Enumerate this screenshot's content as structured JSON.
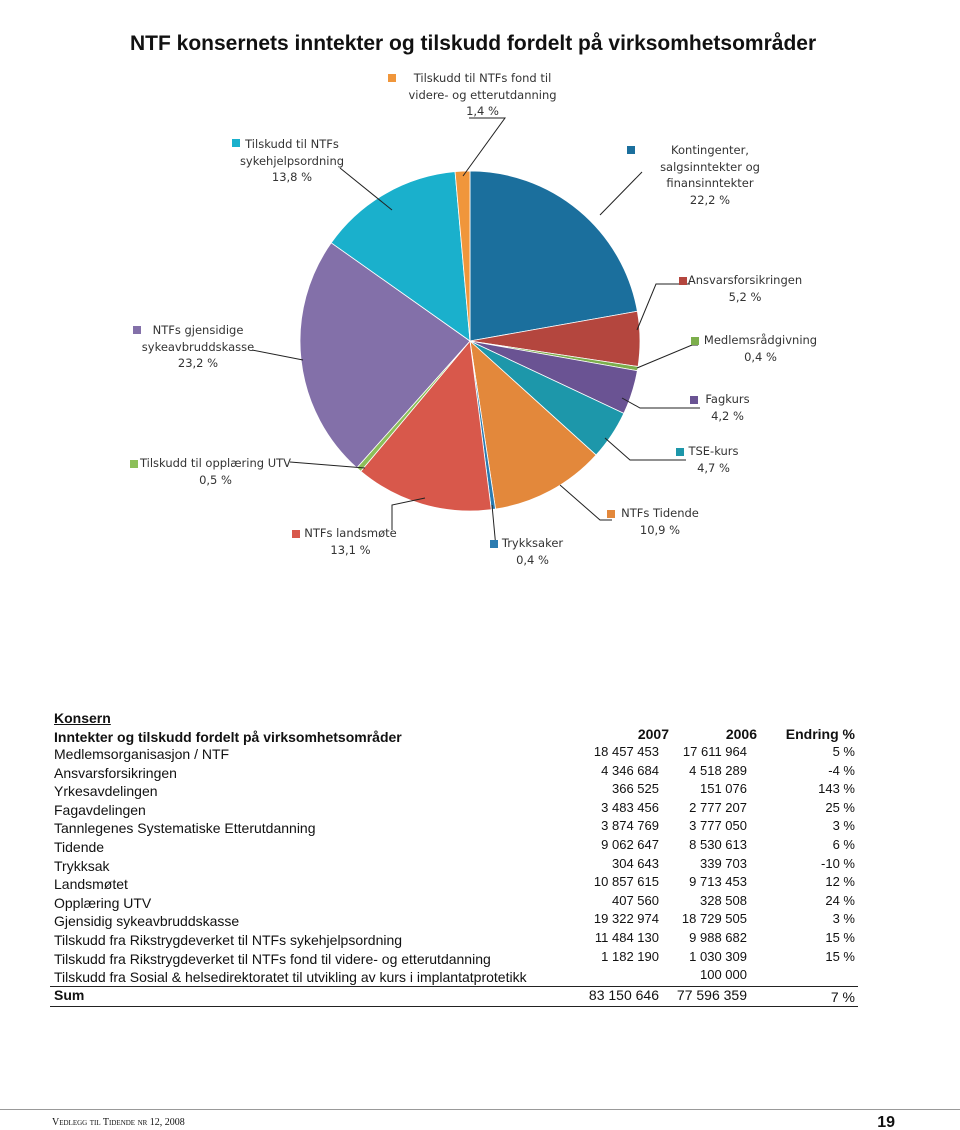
{
  "chart_data": {
    "type": "pie",
    "title": "NTF konsernets inntekter og tilskudd fordelt på virksomhetsområder",
    "categories": [
      "Kontingenter, salgsinntekter og finansinntekter",
      "Ansvarsforsikringen",
      "Medlemsrådgivning",
      "Fagkurs",
      "TSE-kurs",
      "NTFs Tidende",
      "Trykksaker",
      "NTFs landsmøte",
      "Tilskudd til opplæring UTV",
      "NTFs gjensidige sykeavbruddskasse",
      "Tilskudd til NTFs sykehjelpsordning",
      "Tilskudd til NTFs fond til videre- og etterutdanning"
    ],
    "values": [
      22.2,
      5.2,
      0.4,
      4.2,
      4.7,
      10.9,
      0.4,
      13.1,
      0.5,
      23.2,
      13.8,
      1.4
    ],
    "value_labels": [
      "22,2 %",
      "5,2 %",
      "0,4 %",
      "4,2 %",
      "4,7 %",
      "10,9 %",
      "0,4 %",
      "13,1 %",
      "0,5 %",
      "23,2 %",
      "13,8 %",
      "1,4 %"
    ],
    "colors": [
      "#1b6f9d",
      "#b4463e",
      "#7cae4c",
      "#6a5393",
      "#1d97aa",
      "#e3883b",
      "#2b7bb0",
      "#d8584b",
      "#8cbf59",
      "#8370a9",
      "#1ab0cc",
      "#f0963b"
    ]
  },
  "table": {
    "heading": "Konsern",
    "subheading": "Inntekter og tilskudd fordelt på virksomhetsområder",
    "columns": [
      "2007",
      "2006",
      "Endring %"
    ],
    "rows": [
      [
        "Medlemsorganisasjon / NTF",
        "18 457 453",
        "17 611 964",
        "5 %"
      ],
      [
        "Ansvarsforsikringen",
        "4 346 684",
        "4 518 289",
        "-4 %"
      ],
      [
        "Yrkesavdelingen",
        "366 525",
        "151 076",
        "143 %"
      ],
      [
        "Fagavdelingen",
        "3 483 456",
        "2 777 207",
        "25 %"
      ],
      [
        "Tannlegenes Systematiske Etterutdanning",
        "3 874 769",
        "3 777 050",
        "3 %"
      ],
      [
        "Tidende",
        "9 062 647",
        "8 530 613",
        "6 %"
      ],
      [
        "Trykksak",
        "304 643",
        "339 703",
        "-10 %"
      ],
      [
        "Landsmøtet",
        "10 857 615",
        "9 713 453",
        "12 %"
      ],
      [
        "Opplæring UTV",
        "407 560",
        "328 508",
        "24 %"
      ],
      [
        "Gjensidig sykeavbruddskasse",
        "19 322 974",
        "18 729 505",
        "3 %"
      ],
      [
        "Tilskudd fra Rikstrygdeverket til NTFs sykehjelpsordning",
        "11 484 130",
        "9 988 682",
        "15 %"
      ],
      [
        "Tilskudd fra Rikstrygdeverket til NTFs fond til videre- og etterutdanning",
        "1 182 190",
        "1 030 309",
        "15 %"
      ],
      [
        "Tilskudd fra Sosial & helsedirektoratet til utvikling av kurs i implantatprotetikk",
        null,
        "100 000",
        null
      ]
    ],
    "total": [
      "Sum",
      "83 150 646",
      "77 596 359",
      "7 %"
    ]
  },
  "footer": {
    "publication": "Vedlegg til Tidende nr 12, 2008",
    "page": "19"
  }
}
